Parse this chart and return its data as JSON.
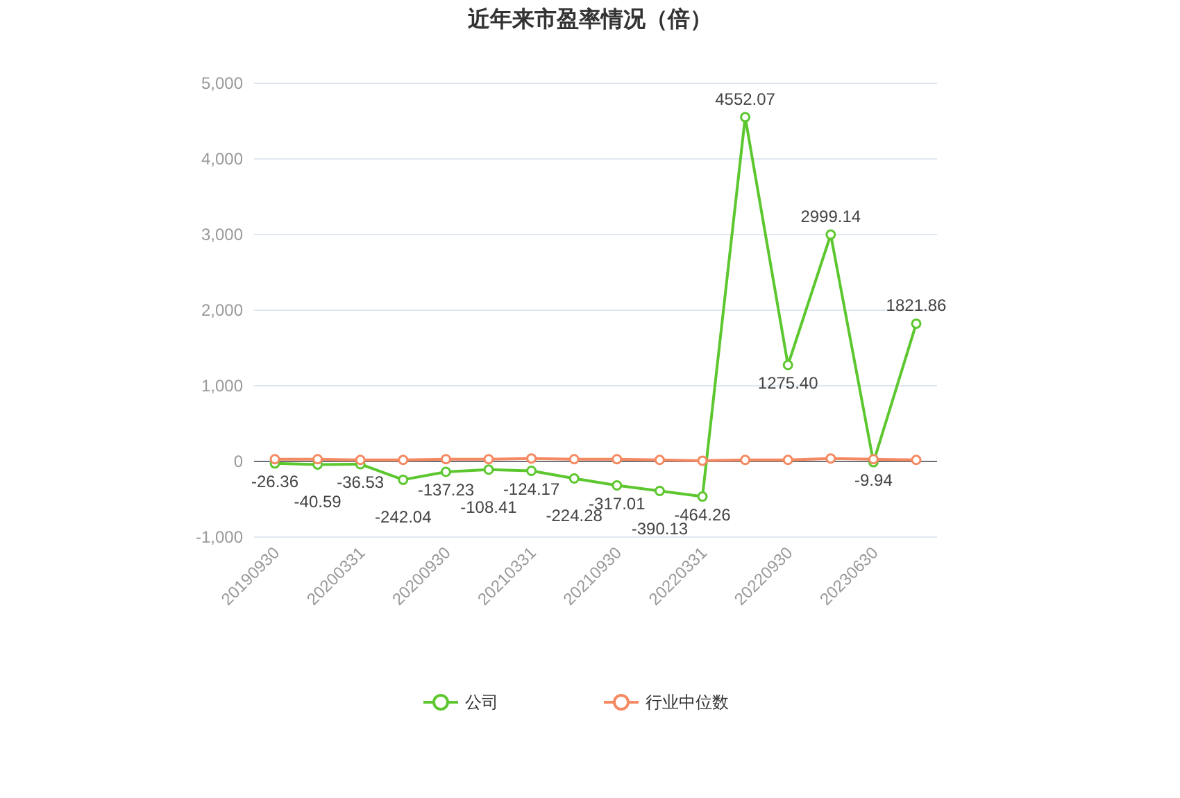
{
  "chart_data": {
    "type": "line",
    "title": "近年来市盈率情况（倍）",
    "categories": [
      "20190930",
      null,
      "20200331",
      null,
      "20200930",
      null,
      "20210331",
      null,
      "20210930",
      null,
      "20220331",
      null,
      "20220930",
      null,
      "20230630",
      null
    ],
    "series": [
      {
        "name": "公司",
        "color": "#5cc72e",
        "values": [
          -26.36,
          -40.59,
          -36.53,
          -242.04,
          -137.23,
          -108.41,
          -124.17,
          -224.28,
          -317.01,
          -390.13,
          -464.26,
          4552.07,
          1275.4,
          2999.14,
          -9.94,
          1821.86
        ],
        "value_labels": [
          "-26.36",
          "-40.59",
          "-36.53",
          "-242.04",
          "-137.23",
          "-108.41",
          "-124.17",
          "-224.28",
          "-317.01",
          "-390.13",
          "-464.26",
          "4552.07",
          "1275.40",
          "2999.14",
          "-9.94",
          "1821.86"
        ]
      },
      {
        "name": "行业中位数",
        "color": "#f58a62",
        "values": [
          30,
          30,
          20,
          20,
          30,
          30,
          40,
          30,
          30,
          20,
          10,
          20,
          20,
          40,
          30,
          20
        ]
      }
    ],
    "ylim": [
      -1000,
      5000
    ],
    "yticks": [
      {
        "value": -1000,
        "label": "-1,000"
      },
      0,
      {
        "value": 1000,
        "label": "1,000"
      },
      {
        "value": 2000,
        "label": "2,000"
      },
      {
        "value": 3000,
        "label": "3,000"
      },
      {
        "value": 4000,
        "label": "4,000"
      },
      {
        "value": 5000,
        "label": "5,000"
      }
    ],
    "grid": "y",
    "legend": "bottom",
    "marker": "circle",
    "line_style": "solid"
  }
}
